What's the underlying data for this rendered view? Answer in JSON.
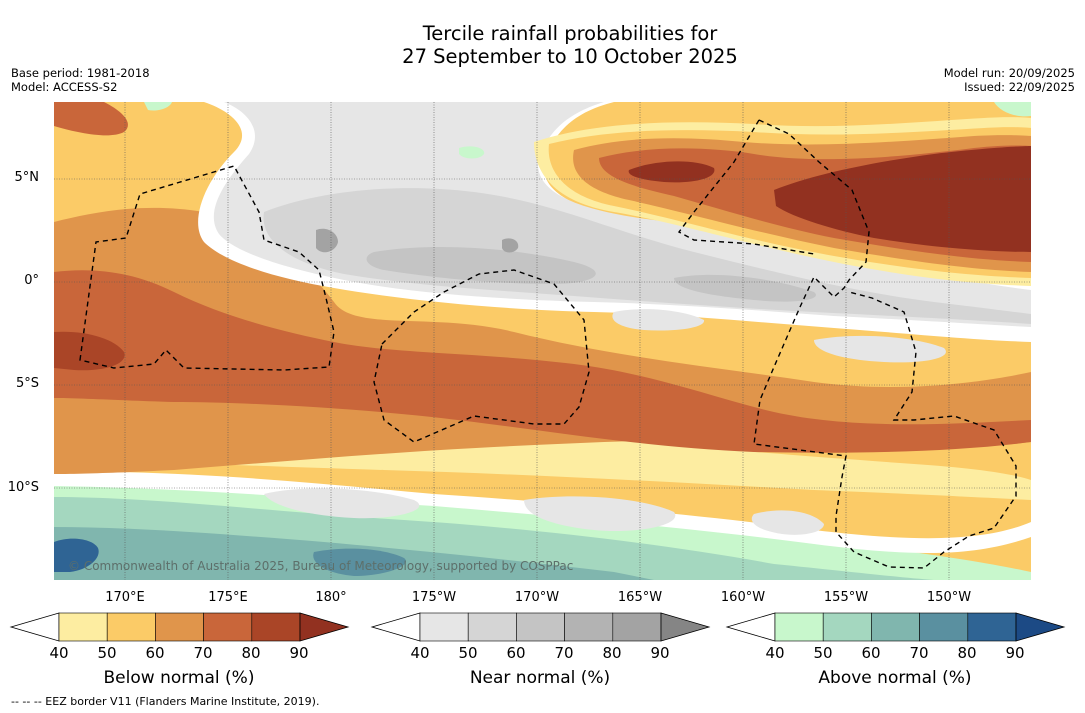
{
  "title": {
    "line1": "Tercile rainfall probabilities for",
    "line2": "27 September to 10 October 2025"
  },
  "meta_left": {
    "base_period": "Base period: 1981-2018",
    "model": "Model: ACCESS-S2"
  },
  "meta_right": {
    "model_run": "Model run: 20/09/2025",
    "issued": "Issued: 22/09/2025"
  },
  "map": {
    "lat_labels": [
      "5°N",
      "0°",
      "5°S",
      "10°S"
    ],
    "lon_labels": [
      "170°E",
      "175°E",
      "180°",
      "175°W",
      "170°W",
      "165°W",
      "160°W",
      "155°W",
      "150°W"
    ],
    "copyright": "© Commonwealth of Australia 2025, Bureau of Meteorology, supported by COSPPac",
    "eez_note": "--  --  -- EEZ border V11 (Flanders Marine Institute, 2019)."
  },
  "colorbars": [
    {
      "title": "Below normal (%)",
      "ticks": [
        "40",
        "50",
        "60",
        "70",
        "80",
        "90"
      ],
      "colors": [
        "#ffffff",
        "#fdeda1",
        "#fbcb67",
        "#e0954b",
        "#c9663a",
        "#aa4527",
        "#923120"
      ]
    },
    {
      "title": "Near normal (%)",
      "ticks": [
        "40",
        "50",
        "60",
        "70",
        "80",
        "90"
      ],
      "colors": [
        "#ffffff",
        "#e6e6e6",
        "#d5d5d5",
        "#c4c4c4",
        "#b3b3b3",
        "#a3a3a3",
        "#858585"
      ]
    },
    {
      "title": "Above normal (%)",
      "ticks": [
        "40",
        "50",
        "60",
        "70",
        "80",
        "90"
      ],
      "colors": [
        "#ffffff",
        "#c8f7cc",
        "#a4d7bf",
        "#80b6ae",
        "#5a90a0",
        "#2f6494",
        "#1c4a85"
      ]
    }
  ]
}
